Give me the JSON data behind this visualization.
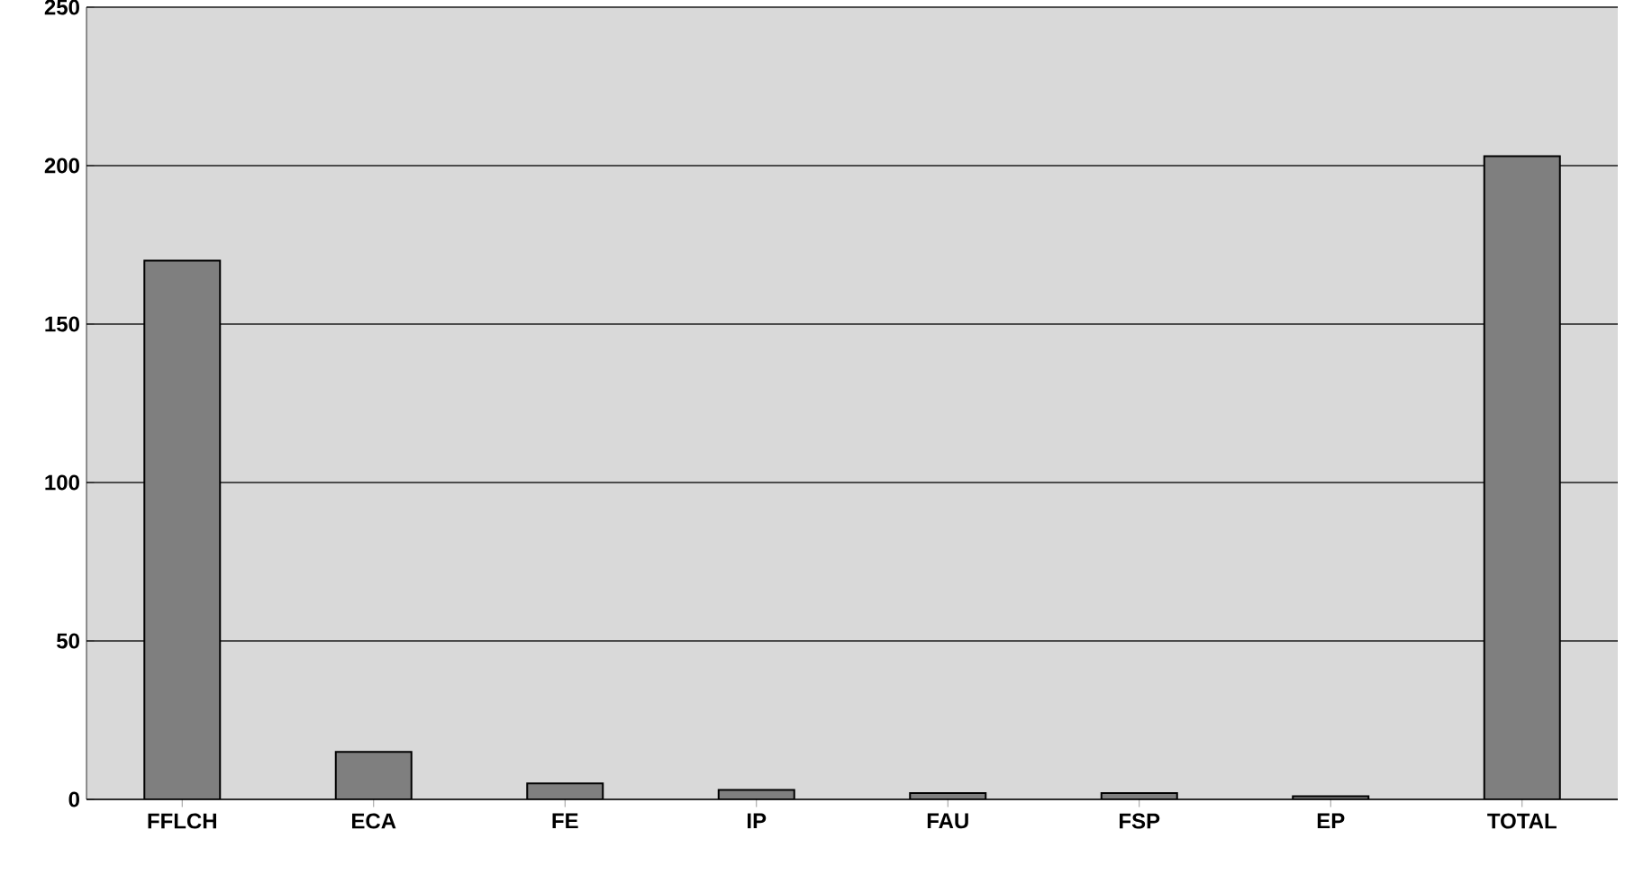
{
  "chart_data": {
    "type": "bar",
    "categories": [
      "FFLCH",
      "ECA",
      "FE",
      "IP",
      "FAU",
      "FSP",
      "EP",
      "TOTAL"
    ],
    "values": [
      170,
      15,
      5,
      3,
      2,
      2,
      1,
      203
    ],
    "color": "#7f7f7f",
    "ylim": [
      0,
      250
    ],
    "yticks": [
      0,
      50,
      100,
      150,
      200,
      250
    ],
    "grid": "y"
  }
}
